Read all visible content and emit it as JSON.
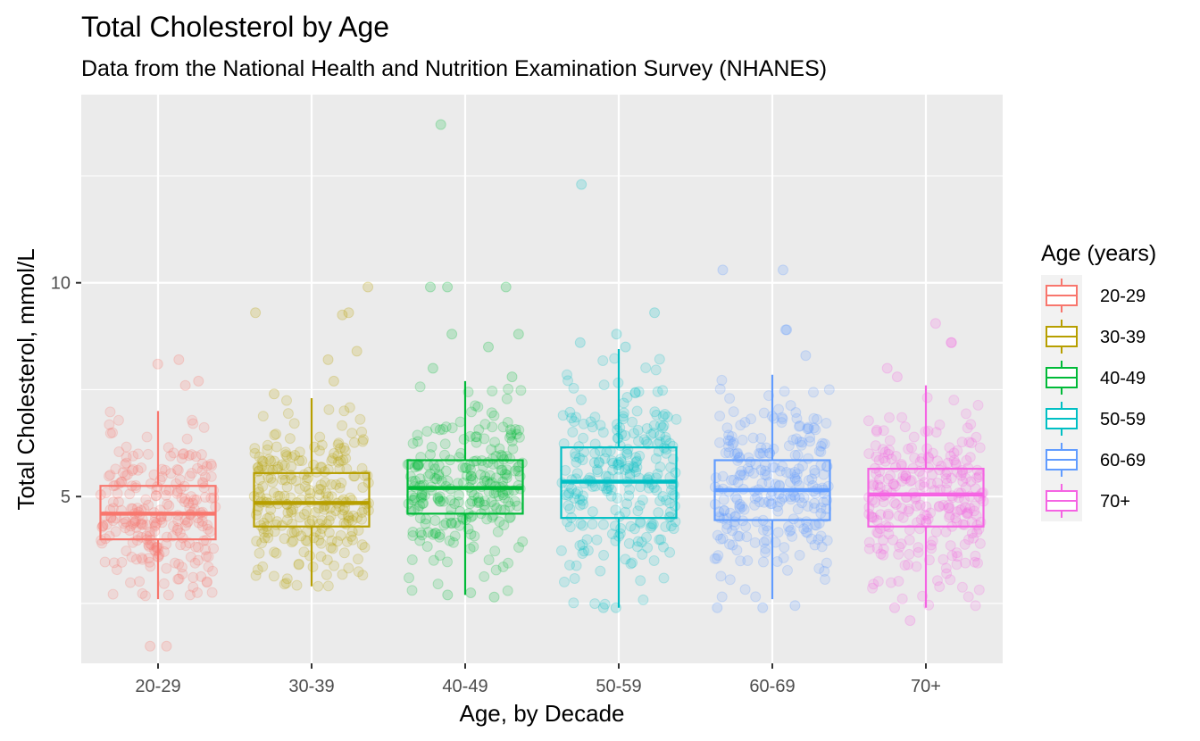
{
  "chart_data": {
    "type": "boxplot",
    "title": "Total Cholesterol by Age",
    "subtitle": "Data from the National Health and Nutrition Examination Survey (NHANES)",
    "xlabel": "Age, by Decade",
    "ylabel": "Total Cholesterol, mmol/L",
    "categories": [
      "20-29",
      "30-39",
      "40-49",
      "50-59",
      "60-69",
      "70+"
    ],
    "ylim": [
      1.1,
      14.4
    ],
    "y_ticks": [
      5,
      10
    ],
    "y_tick_labels": [
      "5",
      "10"
    ],
    "grid": true,
    "legend": {
      "title": "Age (years)",
      "position": "right",
      "entries": [
        "20-29",
        "30-39",
        "40-49",
        "50-59",
        "60-69",
        "70+"
      ]
    },
    "colors": [
      "#F8766D",
      "#B79F00",
      "#00BA38",
      "#00BFC4",
      "#619CFF",
      "#F564E3"
    ],
    "boxes": [
      {
        "group": "20-29",
        "whisker_low": 2.6,
        "q1": 4.0,
        "median": 4.6,
        "q3": 5.25,
        "whisker_high": 7.0
      },
      {
        "group": "30-39",
        "whisker_low": 2.9,
        "q1": 4.3,
        "median": 4.85,
        "q3": 5.55,
        "whisker_high": 7.3
      },
      {
        "group": "40-49",
        "whisker_low": 2.7,
        "q1": 4.6,
        "median": 5.2,
        "q3": 5.85,
        "whisker_high": 7.7
      },
      {
        "group": "50-59",
        "whisker_low": 2.4,
        "q1": 4.5,
        "median": 5.35,
        "q3": 6.15,
        "whisker_high": 8.45
      },
      {
        "group": "60-69",
        "whisker_low": 2.6,
        "q1": 4.45,
        "median": 5.15,
        "q3": 5.85,
        "whisker_high": 7.85
      },
      {
        "group": "70+",
        "whisker_low": 2.4,
        "q1": 4.3,
        "median": 5.05,
        "q3": 5.65,
        "whisker_high": 7.6
      }
    ],
    "outliers": [
      {
        "group": "20-29",
        "values": [
          1.5,
          1.5,
          7.6,
          7.7,
          8.1,
          8.2
        ]
      },
      {
        "group": "30-39",
        "values": [
          7.4,
          7.7,
          8.2,
          8.4,
          9.25,
          9.3,
          9.3,
          9.9
        ]
      },
      {
        "group": "40-49",
        "values": [
          2.65,
          2.7,
          2.75,
          7.8,
          8.0,
          8.5,
          8.8,
          8.8,
          9.9,
          9.9,
          9.9,
          13.7
        ]
      },
      {
        "group": "50-59",
        "values": [
          2.4,
          2.4,
          8.5,
          8.6,
          8.8,
          9.3,
          12.3
        ]
      },
      {
        "group": "60-69",
        "values": [
          2.4,
          2.4,
          2.45,
          8.3,
          8.9,
          8.9,
          10.3,
          10.3
        ]
      },
      {
        "group": "70+",
        "values": [
          2.1,
          2.4,
          7.8,
          8.0,
          8.6,
          8.6,
          9.05
        ]
      }
    ]
  }
}
